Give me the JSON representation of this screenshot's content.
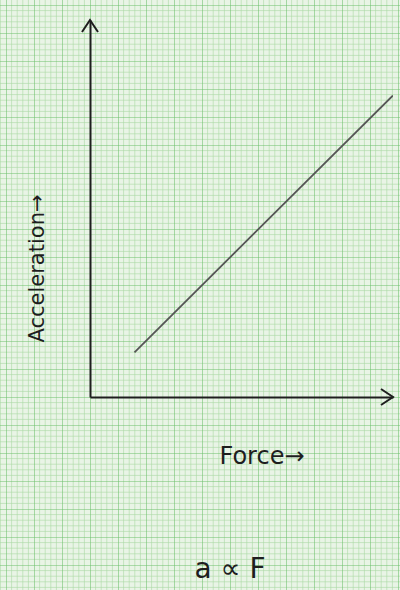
{
  "chart_data": {
    "type": "line",
    "xlabel": "Force→",
    "ylabel": "Acceleration→",
    "annotations": [
      "a ∝ F"
    ],
    "x": [
      1.6,
      10.9
    ],
    "values": [
      1.6,
      10.8
    ],
    "color": "#555555",
    "line_style": "solid",
    "xlim": [
      0,
      10.9
    ],
    "ylim": [
      0,
      13.5
    ],
    "xticks": [],
    "yticks": [],
    "tick_labels": false,
    "grid": false
  }
}
